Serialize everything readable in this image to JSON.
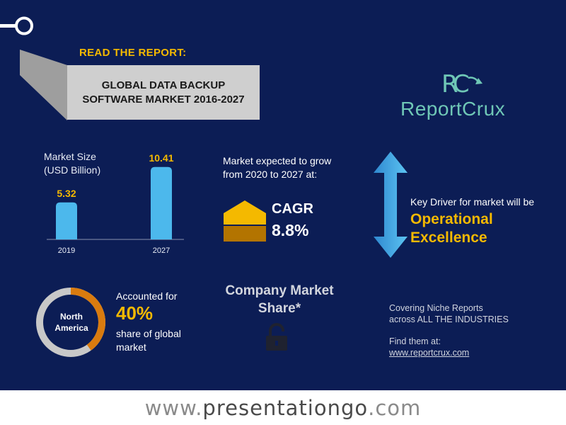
{
  "report": {
    "read_label": "READ THE REPORT:",
    "title": "GLOBAL DATA BACKUP SOFTWARE MARKET 2016-2027"
  },
  "logo": {
    "monogram": "RC",
    "name": "ReportCrux"
  },
  "market_size": {
    "label_line1": "Market Size",
    "label_line2": "(USD Billion)"
  },
  "chart_data": {
    "type": "bar",
    "categories": [
      "2019",
      "2027"
    ],
    "values": [
      5.32,
      10.41
    ],
    "value_labels": [
      "5.32",
      "10.41"
    ],
    "title": "Market Size (USD Billion)",
    "xlabel": "",
    "ylabel": "",
    "ylim": [
      0,
      11
    ],
    "grid": false,
    "bar_color": "#4cb8ec"
  },
  "cagr": {
    "intro_line1": "Market expected to grow",
    "intro_line2": "from 2020 to 2027 at:",
    "label": "CAGR",
    "value": "8.8%"
  },
  "driver": {
    "intro": "Key Driver for market will be",
    "value_line1": "Operational",
    "value_line2": "Excellence"
  },
  "region": {
    "name_line1": "North",
    "name_line2": "America",
    "accounted_label": "Accounted for",
    "share_value": "40%",
    "share_fraction": 0.4,
    "sub_line1": "share of global",
    "sub_line2": "market"
  },
  "company_share": {
    "title_line1": "Company Market",
    "title_line2": "Share*"
  },
  "niche": {
    "line1": "Covering Niche Reports",
    "line2": "across ALL THE INDUSTRIES",
    "find_label": "Find them at:",
    "link": "www.reportcrux.com"
  },
  "footer": {
    "prefix": "www.",
    "brand": "presentationgo",
    "suffix": ".com"
  },
  "colors": {
    "background": "#0c1d55",
    "accent": "#f4b900",
    "bar": "#4cb8ec",
    "donut_share": "#d97b0f",
    "donut_rest": "#c8c8c8",
    "logo": "#6fc7b6"
  },
  "icons": [
    "key-icon",
    "cagr-house-icon",
    "double-arrow-icon",
    "lock-icon"
  ]
}
